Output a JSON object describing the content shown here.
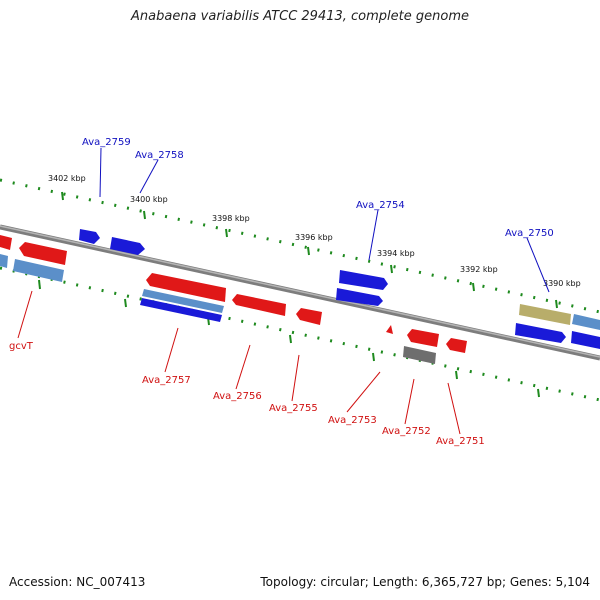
{
  "title": "Anabaena variabilis ATCC 29413, complete genome",
  "footer": {
    "accession": "Accession: NC_007413",
    "summary": "Topology: circular; Length: 6,365,727 bp; Genes: 5,104"
  },
  "ruler_labels": [
    "3402 kbp",
    "3400 kbp",
    "3398 kbp",
    "3396 kbp",
    "3394 kbp",
    "3392 kbp",
    "3390 kbp"
  ],
  "genes_top": [
    "Ava_2759",
    "Ava_2758",
    "Ava_2754",
    "Ava_2750"
  ],
  "genes_bottom": [
    "gcvT",
    "Ava_2757",
    "Ava_2756",
    "Ava_2755",
    "Ava_2753",
    "Ava_2752",
    "Ava_2751"
  ],
  "colors": {
    "forward": "#1a1ad8",
    "reverse": "#e01818",
    "rna": "#5b8fc9",
    "pseudo": "#b8ad6a",
    "other": "#6e6e6e",
    "backbone": "#8a8a8a",
    "ticks": "#1e8a1e",
    "label_forward": "#1010c0",
    "label_reverse": "#d01010"
  }
}
